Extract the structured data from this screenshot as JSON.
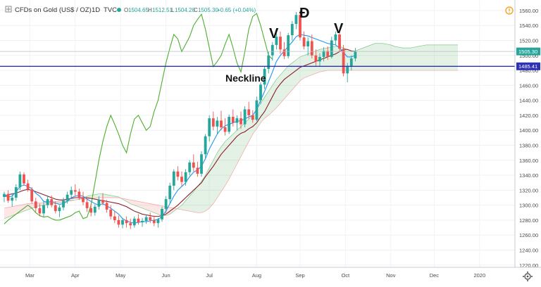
{
  "header": {
    "symbol": "CFDs on Gold (US$ / OZ)",
    "interval": "1D",
    "source": "TVC",
    "open_label": "O",
    "open": "1504.65",
    "high_label": "H",
    "high": "1512.51",
    "low_label": "L",
    "low": "1504.28",
    "close_label": "C",
    "close": "1505.30",
    "change": "+0.65 (+0.04%)"
  },
  "annotations": {
    "left_shoulder": "V",
    "head": "Đ",
    "right_shoulder": "V",
    "neckline": "Neckline"
  },
  "icons": {
    "expand": "expand-icon",
    "alert": "alert-badge-icon",
    "settings": "gear-icon"
  },
  "colors": {
    "up": "#26a69a",
    "down": "#ef5350",
    "neckline": "#2f2fb8",
    "tenkan": "#2196f3",
    "kijun": "#8b1e2b",
    "chikou": "#4caf2e",
    "cloud_bull": "#43a047",
    "cloud_bear": "#ef5350",
    "price_badge": "#26a69a"
  },
  "chart_data": {
    "type": "candlestick",
    "indicator": "Ichimoku Cloud",
    "x_ticks": [
      "Mar",
      "Apr",
      "May",
      "Jun",
      "Jul",
      "Aug",
      "Sep",
      "Oct",
      "Nov",
      "Dec",
      "2020"
    ],
    "y_ticks": [
      "1560.00",
      "1540.00",
      "1520.00",
      "1500.00",
      "1480.00",
      "1460.00",
      "1440.00",
      "1420.00",
      "1400.00",
      "1380.00",
      "1360.00",
      "1340.00",
      "1320.00",
      "1300.00",
      "1280.00",
      "1260.00",
      "1240.00",
      "1220.00"
    ],
    "ylim": [
      1217,
      1574
    ],
    "last_price": "1505.30",
    "neckline_price": "1485.41",
    "neckline_value": 1485.41,
    "candles": [
      [
        1311,
        1318,
        1304,
        1315
      ],
      [
        1315,
        1320,
        1303,
        1306
      ],
      [
        1306,
        1316,
        1298,
        1310
      ],
      [
        1310,
        1328,
        1306,
        1324
      ],
      [
        1324,
        1345,
        1320,
        1341
      ],
      [
        1341,
        1344,
        1326,
        1329
      ],
      [
        1329,
        1334,
        1318,
        1321
      ],
      [
        1321,
        1324,
        1302,
        1305
      ],
      [
        1305,
        1310,
        1291,
        1296
      ],
      [
        1296,
        1302,
        1285,
        1289
      ],
      [
        1289,
        1306,
        1284,
        1300
      ],
      [
        1300,
        1312,
        1296,
        1308
      ],
      [
        1308,
        1313,
        1297,
        1300
      ],
      [
        1300,
        1305,
        1289,
        1292
      ],
      [
        1292,
        1300,
        1284,
        1297
      ],
      [
        1297,
        1310,
        1293,
        1306
      ],
      [
        1306,
        1318,
        1302,
        1314
      ],
      [
        1314,
        1325,
        1310,
        1320
      ],
      [
        1320,
        1328,
        1312,
        1318
      ],
      [
        1318,
        1322,
        1307,
        1310
      ],
      [
        1310,
        1318,
        1300,
        1304
      ],
      [
        1304,
        1310,
        1291,
        1296
      ],
      [
        1296,
        1302,
        1285,
        1290
      ],
      [
        1290,
        1301,
        1286,
        1298
      ],
      [
        1298,
        1312,
        1294,
        1307
      ],
      [
        1307,
        1316,
        1300,
        1303
      ],
      [
        1303,
        1307,
        1290,
        1294
      ],
      [
        1294,
        1300,
        1281,
        1285
      ],
      [
        1285,
        1292,
        1276,
        1280
      ],
      [
        1280,
        1286,
        1270,
        1274
      ],
      [
        1274,
        1283,
        1269,
        1280
      ],
      [
        1280,
        1285,
        1270,
        1276
      ],
      [
        1276,
        1282,
        1268,
        1273
      ],
      [
        1273,
        1285,
        1270,
        1282
      ],
      [
        1282,
        1288,
        1274,
        1277
      ],
      [
        1277,
        1283,
        1271,
        1279
      ],
      [
        1279,
        1287,
        1275,
        1284
      ],
      [
        1284,
        1290,
        1276,
        1280
      ],
      [
        1280,
        1286,
        1272,
        1276
      ],
      [
        1276,
        1283,
        1270,
        1281
      ],
      [
        1281,
        1298,
        1278,
        1295
      ],
      [
        1295,
        1312,
        1290,
        1308
      ],
      [
        1308,
        1330,
        1302,
        1326
      ],
      [
        1326,
        1348,
        1320,
        1345
      ],
      [
        1345,
        1352,
        1333,
        1338
      ],
      [
        1338,
        1345,
        1325,
        1331
      ],
      [
        1331,
        1348,
        1326,
        1344
      ],
      [
        1344,
        1360,
        1340,
        1357
      ],
      [
        1357,
        1368,
        1345,
        1350
      ],
      [
        1350,
        1358,
        1338,
        1342
      ],
      [
        1342,
        1372,
        1338,
        1368
      ],
      [
        1368,
        1395,
        1363,
        1392
      ],
      [
        1392,
        1420,
        1385,
        1416
      ],
      [
        1416,
        1425,
        1400,
        1405
      ],
      [
        1405,
        1418,
        1395,
        1413
      ],
      [
        1413,
        1426,
        1400,
        1404
      ],
      [
        1404,
        1416,
        1393,
        1398
      ],
      [
        1398,
        1421,
        1395,
        1418
      ],
      [
        1418,
        1428,
        1405,
        1410
      ],
      [
        1410,
        1420,
        1400,
        1416
      ],
      [
        1416,
        1425,
        1402,
        1408
      ],
      [
        1408,
        1432,
        1404,
        1428
      ],
      [
        1428,
        1438,
        1415,
        1420
      ],
      [
        1420,
        1427,
        1410,
        1414
      ],
      [
        1414,
        1445,
        1412,
        1440
      ],
      [
        1440,
        1464,
        1435,
        1461
      ],
      [
        1461,
        1485,
        1455,
        1482
      ],
      [
        1482,
        1505,
        1476,
        1500
      ],
      [
        1500,
        1518,
        1493,
        1514
      ],
      [
        1514,
        1530,
        1508,
        1525
      ],
      [
        1525,
        1532,
        1502,
        1508
      ],
      [
        1508,
        1518,
        1495,
        1499
      ],
      [
        1499,
        1530,
        1496,
        1527
      ],
      [
        1527,
        1546,
        1520,
        1542
      ],
      [
        1542,
        1558,
        1535,
        1554
      ],
      [
        1554,
        1560,
        1520,
        1524
      ],
      [
        1524,
        1532,
        1508,
        1512
      ],
      [
        1512,
        1524,
        1500,
        1519
      ],
      [
        1519,
        1528,
        1496,
        1500
      ],
      [
        1500,
        1508,
        1486,
        1492
      ],
      [
        1492,
        1503,
        1485,
        1498
      ],
      [
        1498,
        1511,
        1492,
        1506
      ],
      [
        1506,
        1512,
        1494,
        1498
      ],
      [
        1498,
        1525,
        1496,
        1520
      ],
      [
        1520,
        1532,
        1514,
        1528
      ],
      [
        1528,
        1534,
        1505,
        1509
      ],
      [
        1509,
        1514,
        1472,
        1476
      ],
      [
        1476,
        1490,
        1464,
        1486
      ],
      [
        1486,
        1500,
        1480,
        1496
      ],
      [
        1496,
        1510,
        1492,
        1505
      ]
    ],
    "tenkan_sen": [
      1312,
      1311,
      1312,
      1318,
      1325,
      1327,
      1325,
      1322,
      1316,
      1312,
      1305,
      1304,
      1305,
      1303,
      1301,
      1302,
      1305,
      1310,
      1312,
      1313,
      1312,
      1308,
      1305,
      1302,
      1300,
      1302,
      1299,
      1296,
      1292,
      1288,
      1282,
      1279,
      1277,
      1276,
      1277,
      1278,
      1278,
      1279,
      1280,
      1281,
      1285,
      1292,
      1302,
      1312,
      1320,
      1325,
      1330,
      1338,
      1344,
      1347,
      1352,
      1362,
      1375,
      1385,
      1395,
      1402,
      1406,
      1408,
      1410,
      1412,
      1413,
      1415,
      1418,
      1420,
      1428,
      1440,
      1452,
      1465,
      1478,
      1492,
      1500,
      1506,
      1512,
      1518,
      1525,
      1528,
      1527,
      1526,
      1524,
      1522,
      1520,
      1518,
      1516,
      1515,
      1514,
      1510,
      1504,
      1498,
      1498,
      1500
    ],
    "kijun_sen": [
      1312,
      1314,
      1315,
      1316,
      1318,
      1320,
      1321,
      1320,
      1318,
      1316,
      1314,
      1312,
      1310,
      1308,
      1307,
      1307,
      1308,
      1309,
      1310,
      1310,
      1310,
      1310,
      1309,
      1308,
      1307,
      1306,
      1305,
      1304,
      1303,
      1302,
      1300,
      1298,
      1295,
      1292,
      1290,
      1288,
      1287,
      1286,
      1285,
      1285,
      1286,
      1288,
      1292,
      1296,
      1300,
      1305,
      1310,
      1315,
      1320,
      1325,
      1330,
      1338,
      1345,
      1352,
      1360,
      1368,
      1374,
      1380,
      1386,
      1392,
      1396,
      1398,
      1402,
      1405,
      1410,
      1418,
      1425,
      1435,
      1445,
      1455,
      1462,
      1468,
      1472,
      1476,
      1480,
      1484,
      1486,
      1488,
      1490,
      1492,
      1494,
      1496,
      1498,
      1500,
      1502,
      1505,
      1508,
      1508,
      1506,
      1505
    ],
    "senkou_a": [
      1282,
      1284,
      1286,
      1288,
      1290,
      1292,
      1294,
      1296,
      1298,
      1299,
      1300,
      1301,
      1302,
      1302,
      1303,
      1304,
      1305,
      1306,
      1307,
      1308,
      1310,
      1312,
      1313,
      1314,
      1315,
      1315,
      1314,
      1313,
      1312,
      1311,
      1308,
      1305,
      1302,
      1300,
      1298,
      1296,
      1294,
      1292,
      1290,
      1288,
      1286,
      1286,
      1288,
      1292,
      1296,
      1300,
      1306,
      1312,
      1318,
      1325,
      1332,
      1340,
      1350,
      1360,
      1370,
      1378,
      1385,
      1390,
      1395,
      1400,
      1405,
      1410,
      1415,
      1420,
      1428,
      1436,
      1444,
      1452,
      1460,
      1468,
      1474,
      1480,
      1486,
      1490,
      1494,
      1498,
      1500,
      1502,
      1504,
      1506,
      1508,
      1509,
      1510,
      1511,
      1512,
      1512,
      1510,
      1508,
      1506,
      1506,
      1508,
      1510,
      1512,
      1514,
      1516,
      1516,
      1516,
      1515,
      1514,
      1512,
      1511,
      1510,
      1510,
      1510,
      1511,
      1512,
      1513,
      1514,
      1514,
      1514,
      1514,
      1514,
      1514,
      1514,
      1514,
      1514
    ],
    "senkou_b": [
      1296,
      1297,
      1298,
      1299,
      1300,
      1301,
      1302,
      1302,
      1303,
      1303,
      1303,
      1304,
      1304,
      1305,
      1305,
      1306,
      1306,
      1307,
      1307,
      1308,
      1308,
      1308,
      1309,
      1309,
      1310,
      1310,
      1310,
      1310,
      1310,
      1310,
      1309,
      1308,
      1307,
      1306,
      1305,
      1304,
      1303,
      1302,
      1301,
      1300,
      1299,
      1298,
      1297,
      1296,
      1295,
      1294,
      1293,
      1292,
      1291,
      1290,
      1290,
      1292,
      1296,
      1302,
      1310,
      1318,
      1326,
      1335,
      1345,
      1355,
      1365,
      1375,
      1385,
      1395,
      1402,
      1410,
      1416,
      1420,
      1425,
      1430,
      1436,
      1442,
      1448,
      1454,
      1460,
      1466,
      1470,
      1472,
      1474,
      1476,
      1478,
      1479,
      1480,
      1480,
      1480,
      1480,
      1480,
      1480,
      1480,
      1480,
      1480,
      1480,
      1480,
      1480,
      1480,
      1480,
      1480,
      1480,
      1480,
      1480,
      1480,
      1480,
      1480,
      1480,
      1480,
      1480,
      1480,
      1480,
      1480,
      1480,
      1480,
      1480,
      1480,
      1480,
      1480,
      1480
    ],
    "chikou_span": [
      1275,
      1280,
      1284,
      1288,
      1292,
      1296,
      1300,
      1296,
      1290,
      1286,
      1284,
      1285,
      1282,
      1280,
      1280,
      1282,
      1284,
      1286,
      1290,
      1292,
      1282,
      1284,
      1300,
      1330,
      1360,
      1385,
      1405,
      1420,
      1408,
      1395,
      1380,
      1370,
      1395,
      1415,
      1420,
      1410,
      1400,
      1405,
      1425,
      1440,
      1465,
      1490,
      1510,
      1528,
      1522,
      1505,
      1515,
      1525,
      1540,
      1548,
      1555,
      1535,
      1510,
      1485,
      1492,
      1500,
      1515,
      1528,
      1510,
      1490,
      1478,
      1505,
      1535,
      1552,
      1556,
      1540,
      1520,
      1500,
      1495
    ]
  }
}
